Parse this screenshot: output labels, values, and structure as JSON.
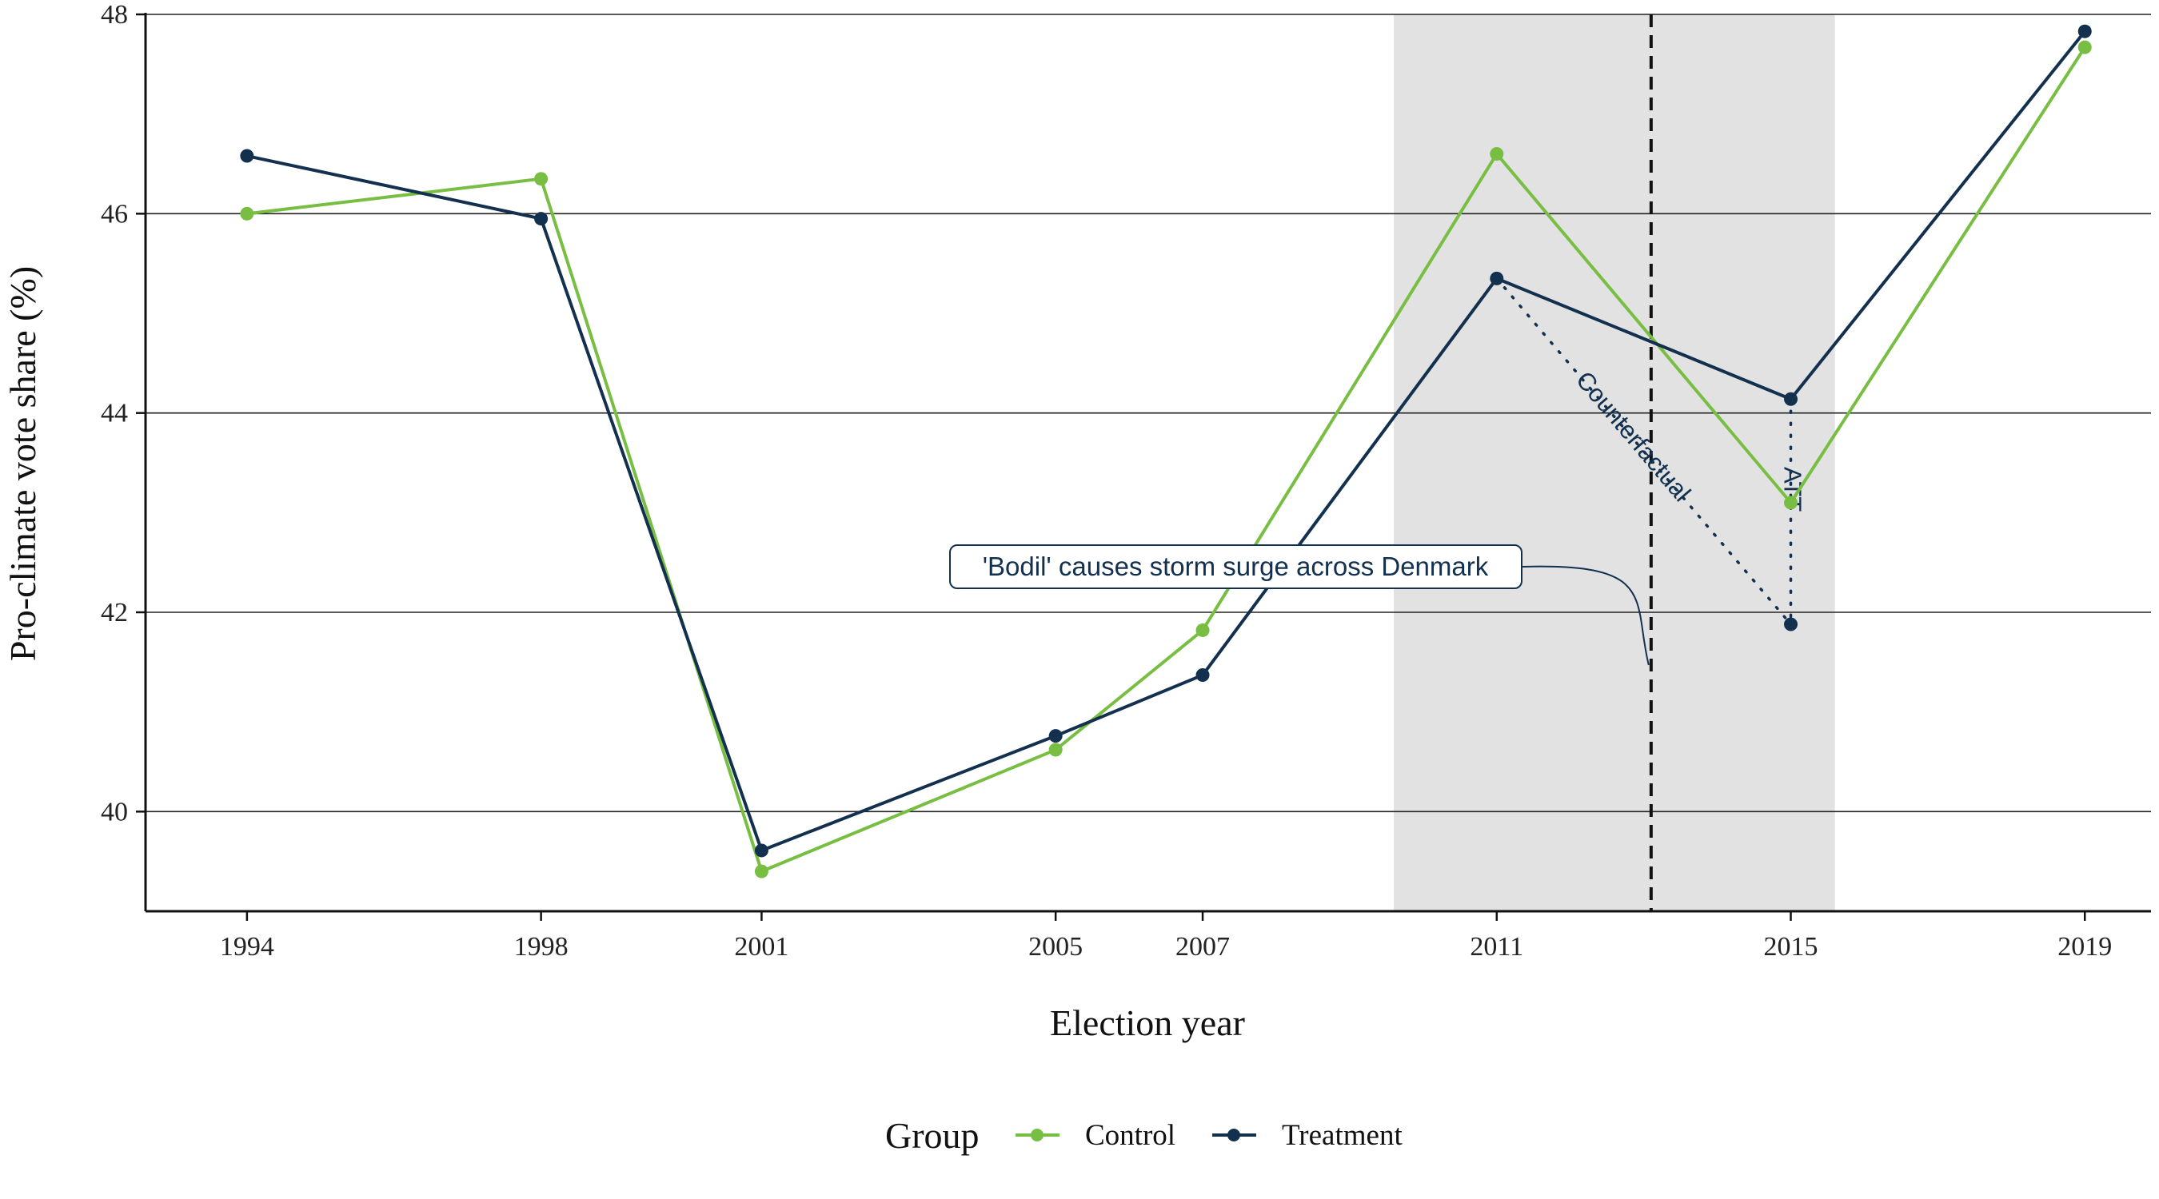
{
  "chart_data": {
    "type": "line",
    "xlabel": "Election year",
    "ylabel": "Pro-climate vote share (%)",
    "ylim": [
      39.0,
      48.0
    ],
    "y_ticks": [
      "40",
      "42",
      "44",
      "46",
      "48"
    ],
    "grid": "horizontal major lines",
    "categories": [
      "1994",
      "1998",
      "2001",
      "2005",
      "2007",
      "2011",
      "2015",
      "2019"
    ],
    "series": [
      {
        "name": "Control",
        "color": "#78be43",
        "values": [
          46.0,
          46.35,
          39.4,
          40.62,
          41.82,
          46.6,
          43.1,
          47.67
        ]
      },
      {
        "name": "Treatment",
        "color": "#13304f",
        "values": [
          46.58,
          45.95,
          39.61,
          40.76,
          41.37,
          45.35,
          44.14,
          47.83
        ]
      }
    ],
    "counterfactual": {
      "from_year": "2011",
      "from_value": 45.35,
      "to_year": "2015",
      "to_value": 41.88,
      "label": "Counterfactual"
    },
    "att": {
      "year": "2015",
      "from_value": 44.14,
      "to_value": 41.88,
      "label": "ATT"
    },
    "treatment_window": {
      "from": "between 2007 and 2011",
      "to": "between 2015 and 2019"
    },
    "event_marker": {
      "position": "between 2011 and 2015",
      "style": "dashed vertical line"
    },
    "callout": "'Bodil' causes storm surge across Denmark",
    "legend": {
      "title": "Group",
      "position": "bottom",
      "items": [
        "Control",
        "Treatment"
      ]
    }
  }
}
